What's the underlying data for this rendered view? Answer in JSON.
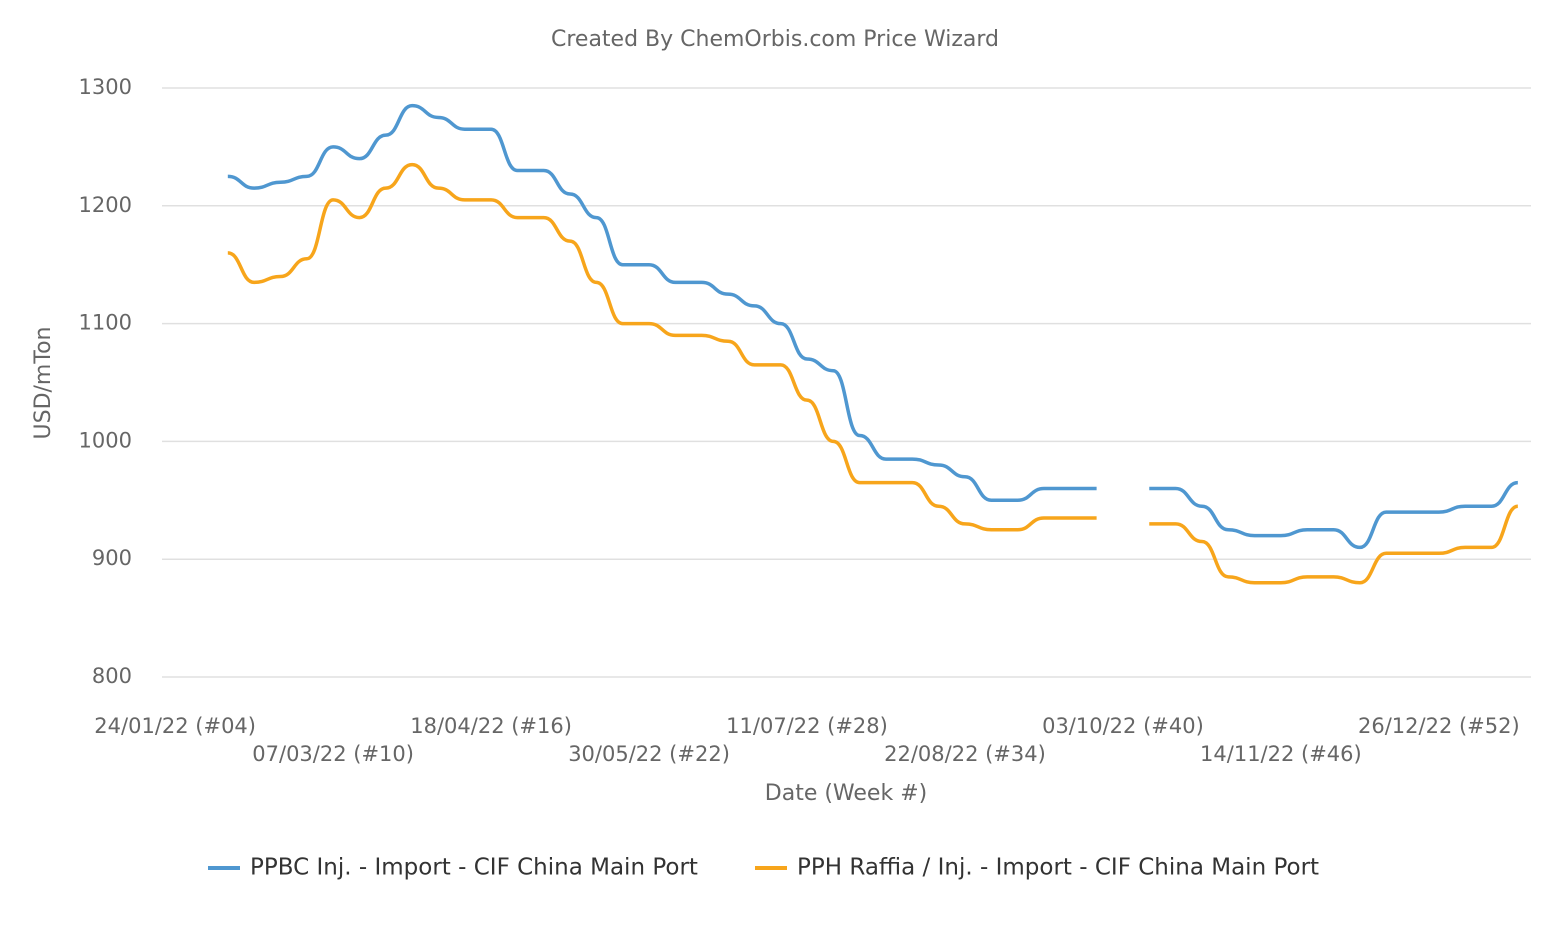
{
  "chart_data": {
    "type": "line",
    "title": "Created By ChemOrbis.com Price Wizard",
    "x_label": "Date (Week #)",
    "y_label": "USD/mTon",
    "categories": [
      "24/01/22 (#04)",
      null,
      null,
      null,
      null,
      null,
      "07/03/22 (#10)",
      null,
      null,
      null,
      null,
      null,
      "18/04/22 (#16)",
      null,
      null,
      null,
      null,
      null,
      "30/05/22 (#22)",
      null,
      null,
      null,
      null,
      null,
      "11/07/22 (#28)",
      null,
      null,
      null,
      null,
      null,
      "22/08/22 (#34)",
      null,
      null,
      null,
      null,
      null,
      "03/10/22 (#40)",
      null,
      null,
      null,
      null,
      null,
      "14/11/22 (#46)",
      null,
      null,
      null,
      null,
      null,
      "26/12/22 (#52)",
      null,
      null,
      null
    ],
    "series": [
      {
        "name": "PPBC Inj. - Import - CIF China Main Port",
        "color": "#4f97d0",
        "values": [
          null,
          null,
          1225,
          1215,
          1220,
          1225,
          1250,
          1240,
          1260,
          1285,
          1275,
          1265,
          1265,
          1230,
          1230,
          1210,
          1190,
          1150,
          1150,
          1135,
          1135,
          1125,
          1115,
          1100,
          1070,
          1060,
          1005,
          985,
          985,
          980,
          970,
          950,
          950,
          960,
          960,
          960,
          null,
          960,
          960,
          945,
          925,
          920,
          920,
          925,
          925,
          910,
          940,
          940,
          940,
          945,
          945,
          965
        ]
      },
      {
        "name": "PPH Raffia / Inj. - Import - CIF China Main Port",
        "color": "#f7a51b",
        "values": [
          null,
          null,
          1160,
          1135,
          1140,
          1155,
          1205,
          1190,
          1215,
          1235,
          1215,
          1205,
          1205,
          1190,
          1190,
          1170,
          1135,
          1100,
          1100,
          1090,
          1090,
          1085,
          1065,
          1065,
          1035,
          1000,
          965,
          965,
          965,
          945,
          930,
          925,
          925,
          935,
          935,
          935,
          null,
          930,
          930,
          915,
          885,
          880,
          880,
          885,
          885,
          880,
          905,
          905,
          905,
          910,
          910,
          945
        ]
      }
    ],
    "ylim": [
      800,
      1300
    ],
    "yticks": [
      800,
      900,
      1000,
      1100,
      1200,
      1300
    ],
    "grid": true,
    "legend": "bottom"
  }
}
